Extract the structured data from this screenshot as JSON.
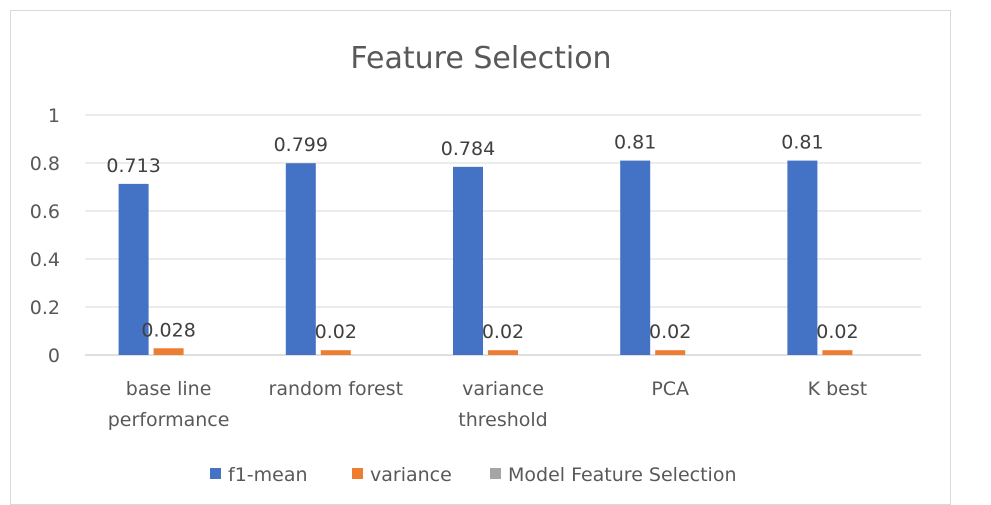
{
  "chart_data": {
    "type": "bar",
    "title": "Feature Selection",
    "categories": [
      [
        "base line",
        "performance"
      ],
      [
        "random forest"
      ],
      [
        "variance",
        "threshold"
      ],
      [
        "PCA"
      ],
      [
        "K best"
      ]
    ],
    "series": [
      {
        "name": "f1-mean",
        "color": "#4472C4",
        "values": [
          0.713,
          0.799,
          0.784,
          0.81,
          0.81
        ],
        "labels": [
          "0.713",
          "0.799",
          "0.784",
          "0.81",
          "0.81"
        ]
      },
      {
        "name": "variance",
        "color": "#ED7D31",
        "values": [
          0.028,
          0.02,
          0.02,
          0.02,
          0.02
        ],
        "labels": [
          "0.028",
          "0.02",
          "0.02",
          "0.02",
          "0.02"
        ]
      }
    ],
    "legend": [
      {
        "name": "f1-mean",
        "color": "#4472C4"
      },
      {
        "name": "variance",
        "color": "#ED7D31"
      },
      {
        "name": "Model Feature Selection",
        "color": "#A5A5A5"
      }
    ],
    "ylim": [
      0,
      1
    ],
    "yticks": [
      "0",
      "0.2",
      "0.4",
      "0.6",
      "0.8",
      "1"
    ],
    "xlabel": "",
    "ylabel": "",
    "grid": true,
    "legend_position": "bottom"
  }
}
